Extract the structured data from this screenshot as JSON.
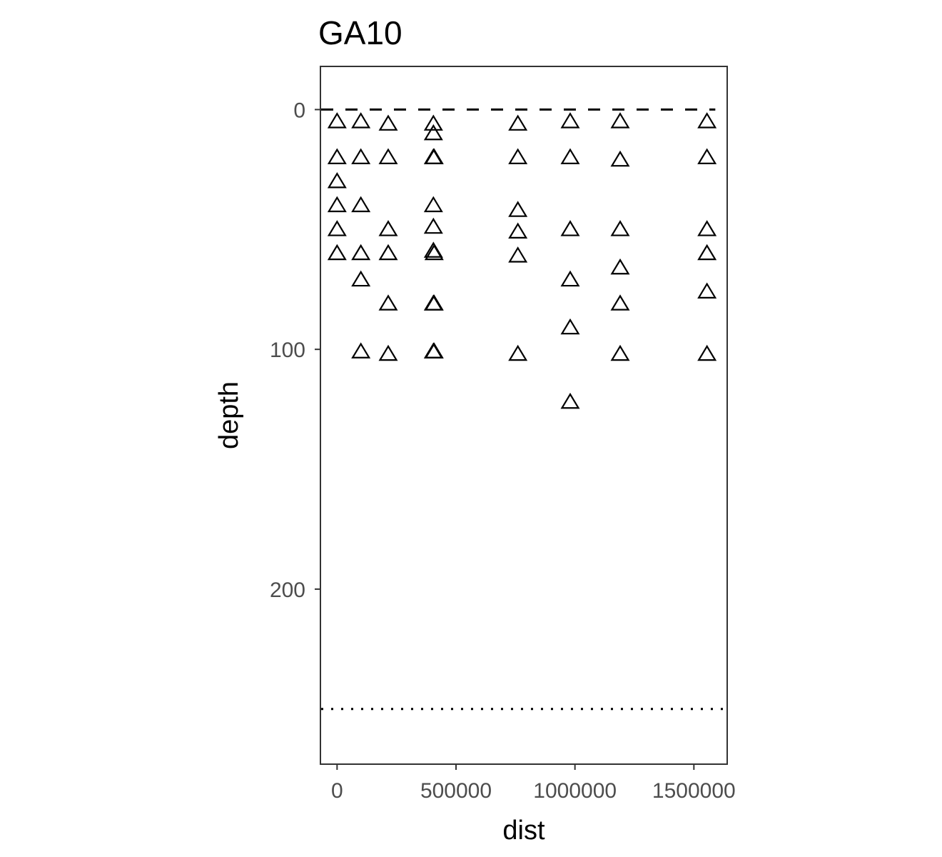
{
  "chart_data": {
    "type": "scatter",
    "title": "GA10",
    "xlabel": "dist",
    "ylabel": "depth",
    "xlim": [
      -70000,
      1640000
    ],
    "ylim": [
      -18,
      273
    ],
    "y_reversed": true,
    "x_ticks": [
      0,
      500000,
      1000000,
      1500000
    ],
    "x_tick_labels": [
      "0",
      "500000",
      "1000000",
      "1500000"
    ],
    "y_ticks": [
      0,
      100,
      200
    ],
    "y_tick_labels": [
      "0",
      "100",
      "200"
    ],
    "grid": false,
    "marker": "open-triangle",
    "reference_lines": [
      {
        "style": "dashed",
        "depth": 0,
        "x_start": -70000,
        "x_end": 1590000
      },
      {
        "style": "dotted",
        "depth": 250,
        "x_start": -70000,
        "x_end": 1640000
      }
    ],
    "points": [
      {
        "x": 0,
        "y": 5
      },
      {
        "x": 0,
        "y": 20
      },
      {
        "x": 0,
        "y": 30
      },
      {
        "x": 0,
        "y": 40
      },
      {
        "x": 0,
        "y": 50
      },
      {
        "x": 0,
        "y": 60
      },
      {
        "x": 100000,
        "y": 5
      },
      {
        "x": 100000,
        "y": 20
      },
      {
        "x": 100000,
        "y": 40
      },
      {
        "x": 100000,
        "y": 60
      },
      {
        "x": 100000,
        "y": 71
      },
      {
        "x": 100000,
        "y": 101
      },
      {
        "x": 215000,
        "y": 6
      },
      {
        "x": 215000,
        "y": 20
      },
      {
        "x": 215000,
        "y": 50
      },
      {
        "x": 215000,
        "y": 60
      },
      {
        "x": 215000,
        "y": 81
      },
      {
        "x": 215000,
        "y": 102
      },
      {
        "x": 405000,
        "y": 6
      },
      {
        "x": 405000,
        "y": 10
      },
      {
        "x": 405000,
        "y": 20
      },
      {
        "x": 408000,
        "y": 20
      },
      {
        "x": 405000,
        "y": 40
      },
      {
        "x": 405000,
        "y": 49
      },
      {
        "x": 405000,
        "y": 59
      },
      {
        "x": 408000,
        "y": 60
      },
      {
        "x": 405000,
        "y": 81
      },
      {
        "x": 408000,
        "y": 81
      },
      {
        "x": 405000,
        "y": 101
      },
      {
        "x": 408000,
        "y": 101
      },
      {
        "x": 760000,
        "y": 6
      },
      {
        "x": 760000,
        "y": 20
      },
      {
        "x": 760000,
        "y": 42
      },
      {
        "x": 760000,
        "y": 51
      },
      {
        "x": 760000,
        "y": 61
      },
      {
        "x": 760000,
        "y": 102
      },
      {
        "x": 980000,
        "y": 5
      },
      {
        "x": 980000,
        "y": 20
      },
      {
        "x": 980000,
        "y": 50
      },
      {
        "x": 980000,
        "y": 71
      },
      {
        "x": 980000,
        "y": 91
      },
      {
        "x": 980000,
        "y": 122
      },
      {
        "x": 1190000,
        "y": 5
      },
      {
        "x": 1190000,
        "y": 21
      },
      {
        "x": 1190000,
        "y": 50
      },
      {
        "x": 1190000,
        "y": 66
      },
      {
        "x": 1190000,
        "y": 81
      },
      {
        "x": 1190000,
        "y": 102
      },
      {
        "x": 1555000,
        "y": 5
      },
      {
        "x": 1555000,
        "y": 20
      },
      {
        "x": 1555000,
        "y": 50
      },
      {
        "x": 1555000,
        "y": 60
      },
      {
        "x": 1555000,
        "y": 76
      },
      {
        "x": 1555000,
        "y": 102
      }
    ]
  },
  "colors": {
    "points": "#000000",
    "panel_border": "#333333",
    "tick_text": "#4d4d4d",
    "reference_lines": "#000000"
  }
}
